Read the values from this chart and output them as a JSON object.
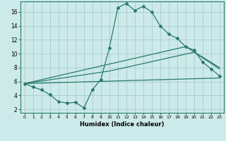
{
  "title": "",
  "xlabel": "Humidex (Indice chaleur)",
  "background_color": "#cdeaea",
  "line_color": "#2a7a6a",
  "xlim": [
    -0.5,
    23.5
  ],
  "ylim": [
    1.5,
    17.5
  ],
  "xticks": [
    0,
    1,
    2,
    3,
    4,
    5,
    6,
    7,
    8,
    9,
    10,
    11,
    12,
    13,
    14,
    15,
    16,
    17,
    18,
    19,
    20,
    21,
    22,
    23
  ],
  "yticks": [
    2,
    4,
    6,
    8,
    10,
    12,
    14,
    16
  ],
  "grid_color": "#a8cccc",
  "line1_x": [
    0,
    1,
    2,
    3,
    4,
    5,
    6,
    7,
    8,
    9,
    10,
    11,
    12,
    13,
    14,
    15,
    16,
    17,
    18,
    19,
    20,
    21,
    22,
    23
  ],
  "line1_y": [
    5.7,
    5.2,
    4.8,
    4.1,
    3.1,
    2.9,
    3.0,
    2.2,
    4.8,
    6.3,
    10.8,
    16.6,
    17.2,
    16.2,
    16.8,
    16.0,
    14.0,
    12.8,
    12.2,
    11.0,
    10.5,
    8.8,
    7.8,
    6.8
  ],
  "line2_x": [
    0,
    23
  ],
  "line2_y": [
    5.7,
    6.5
  ],
  "line3_x": [
    0,
    10,
    19,
    23
  ],
  "line3_y": [
    5.7,
    8.5,
    11.0,
    8.0
  ],
  "line4_x": [
    0,
    10,
    20,
    23
  ],
  "line4_y": [
    5.7,
    7.5,
    10.2,
    7.8
  ]
}
